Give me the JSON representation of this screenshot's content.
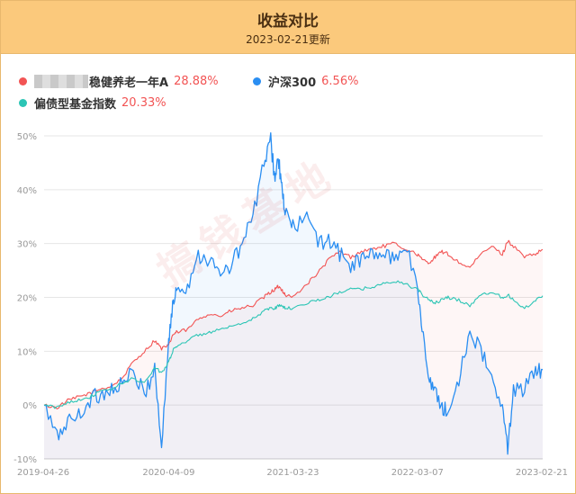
{
  "header": {
    "title": "收益对比",
    "subtitle": "2023-02-21更新"
  },
  "legend": [
    {
      "name": "稳健养老一年A",
      "value": "28.88%",
      "color": "#f25454"
    },
    {
      "name": "沪深300",
      "value": "6.56%",
      "color": "#2a8ef2"
    },
    {
      "name": "偏债型基金指数",
      "value": "20.33%",
      "color": "#2cc5b5"
    }
  ],
  "watermark": "搞钱基地",
  "chart_data": {
    "type": "line",
    "x_ticks": [
      "2019-04-26",
      "2020-04-09",
      "2021-03-23",
      "2022-03-07",
      "2023-02-21"
    ],
    "y_ticks": [
      "50%",
      "40%",
      "30%",
      "20%",
      "10%",
      "0%",
      "-10%"
    ],
    "ylim": [
      -10,
      50
    ],
    "grid": true,
    "legend_position": "top-left",
    "x": [
      "2019-04-26",
      "2019-06-01",
      "2019-07-01",
      "2019-08-01",
      "2019-09-01",
      "2019-10-01",
      "2019-11-01",
      "2019-12-01",
      "2020-01-01",
      "2020-02-01",
      "2020-03-01",
      "2020-03-20",
      "2020-04-09",
      "2020-04-20",
      "2020-05-01",
      "2020-06-01",
      "2020-07-01",
      "2020-08-01",
      "2020-09-01",
      "2020-10-01",
      "2020-11-01",
      "2020-12-01",
      "2021-01-01",
      "2021-01-20",
      "2021-02-01",
      "2021-02-10",
      "2021-02-20",
      "2021-03-01",
      "2021-03-23",
      "2021-05-01",
      "2021-06-01",
      "2021-07-01",
      "2021-08-01",
      "2021-09-01",
      "2021-10-01",
      "2021-11-01",
      "2021-12-01",
      "2022-01-01",
      "2022-02-01",
      "2022-03-07",
      "2022-03-20",
      "2022-04-10",
      "2022-04-26",
      "2022-05-15",
      "2022-06-01",
      "2022-07-01",
      "2022-08-01",
      "2022-09-01",
      "2022-10-01",
      "2022-10-31",
      "2022-11-15",
      "2022-12-01",
      "2023-01-01",
      "2023-02-01",
      "2023-02-21"
    ],
    "series": [
      {
        "name": "稳健养老一年A",
        "color": "#f25454",
        "values": [
          0,
          -0.5,
          0.8,
          1.5,
          2.2,
          3,
          3.5,
          5,
          8,
          10,
          12,
          10.5,
          11,
          13,
          13.5,
          14,
          16,
          17,
          16.5,
          17.5,
          18,
          18.5,
          20,
          21,
          21.5,
          22,
          21.5,
          20.5,
          20,
          22.5,
          24.5,
          27,
          28.5,
          27.5,
          28.5,
          29,
          29.5,
          30,
          29,
          28,
          27,
          26.5,
          27.5,
          28.5,
          28,
          26.5,
          25.5,
          28,
          29.5,
          28,
          30.5,
          29.5,
          27.5,
          28,
          28.9
        ]
      },
      {
        "name": "沪深300",
        "color": "#2a8ef2",
        "values": [
          0,
          -6,
          -3,
          -2,
          1,
          2,
          3,
          4,
          6,
          2,
          7,
          -8,
          12,
          18,
          22,
          22,
          28,
          27,
          24,
          26,
          30,
          35,
          45,
          49,
          42,
          46,
          40,
          36,
          33,
          35,
          30,
          31,
          28,
          26,
          27,
          28,
          28,
          27,
          30,
          22,
          14,
          5,
          2,
          0,
          -2,
          5,
          14,
          10,
          5,
          -1,
          -8,
          3,
          3,
          6,
          6.6
        ]
      },
      {
        "name": "偏债型基金指数",
        "color": "#2cc5b5",
        "values": [
          0,
          -0.5,
          0.5,
          1,
          1.5,
          2.5,
          3,
          4,
          5,
          4,
          7,
          6,
          8,
          10,
          11,
          12,
          13,
          13.5,
          14,
          14.5,
          15,
          16,
          17.5,
          18,
          18,
          18.5,
          18.5,
          18,
          18,
          19,
          19.5,
          20,
          21,
          21.5,
          21.5,
          22,
          22.5,
          23,
          22.5,
          21.5,
          20.5,
          19.5,
          19,
          19.5,
          20,
          19.5,
          18.5,
          20.5,
          21,
          20,
          20.5,
          19.5,
          18,
          19.5,
          20.3
        ]
      }
    ]
  }
}
